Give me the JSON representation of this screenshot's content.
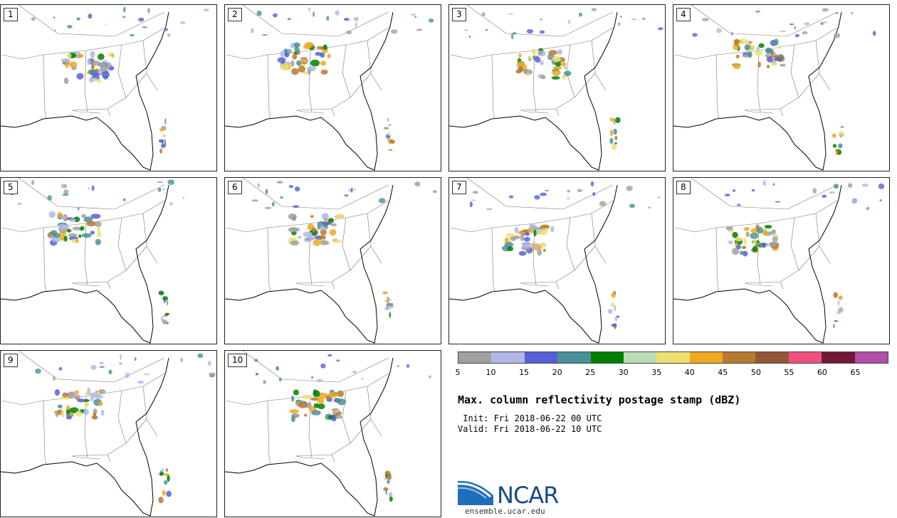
{
  "panels": [
    {
      "label": "1"
    },
    {
      "label": "2"
    },
    {
      "label": "3"
    },
    {
      "label": "4"
    },
    {
      "label": "5"
    },
    {
      "label": "6"
    },
    {
      "label": "7"
    },
    {
      "label": "8"
    },
    {
      "label": "9"
    },
    {
      "label": "10"
    }
  ],
  "colorbar": {
    "colors": [
      "#a0a0a0",
      "#b0b8e8",
      "#5660d8",
      "#4a9098",
      "#008000",
      "#b8dcb4",
      "#ede070",
      "#f0a820",
      "#b87a30",
      "#905838",
      "#f05080",
      "#701838",
      "#b050a8"
    ],
    "ticks": [
      "5",
      "10",
      "15",
      "20",
      "25",
      "30",
      "35",
      "40",
      "45",
      "50",
      "55",
      "60",
      "65"
    ]
  },
  "title": "Max. column reflectivity postage stamp (dBZ)",
  "init": " Init: Fri 2018-06-22 00 UTC",
  "valid": "Valid: Fri 2018-06-22 10 UTC",
  "logo": {
    "name": "NCAR",
    "url": "ensemble.ucar.edu"
  }
}
